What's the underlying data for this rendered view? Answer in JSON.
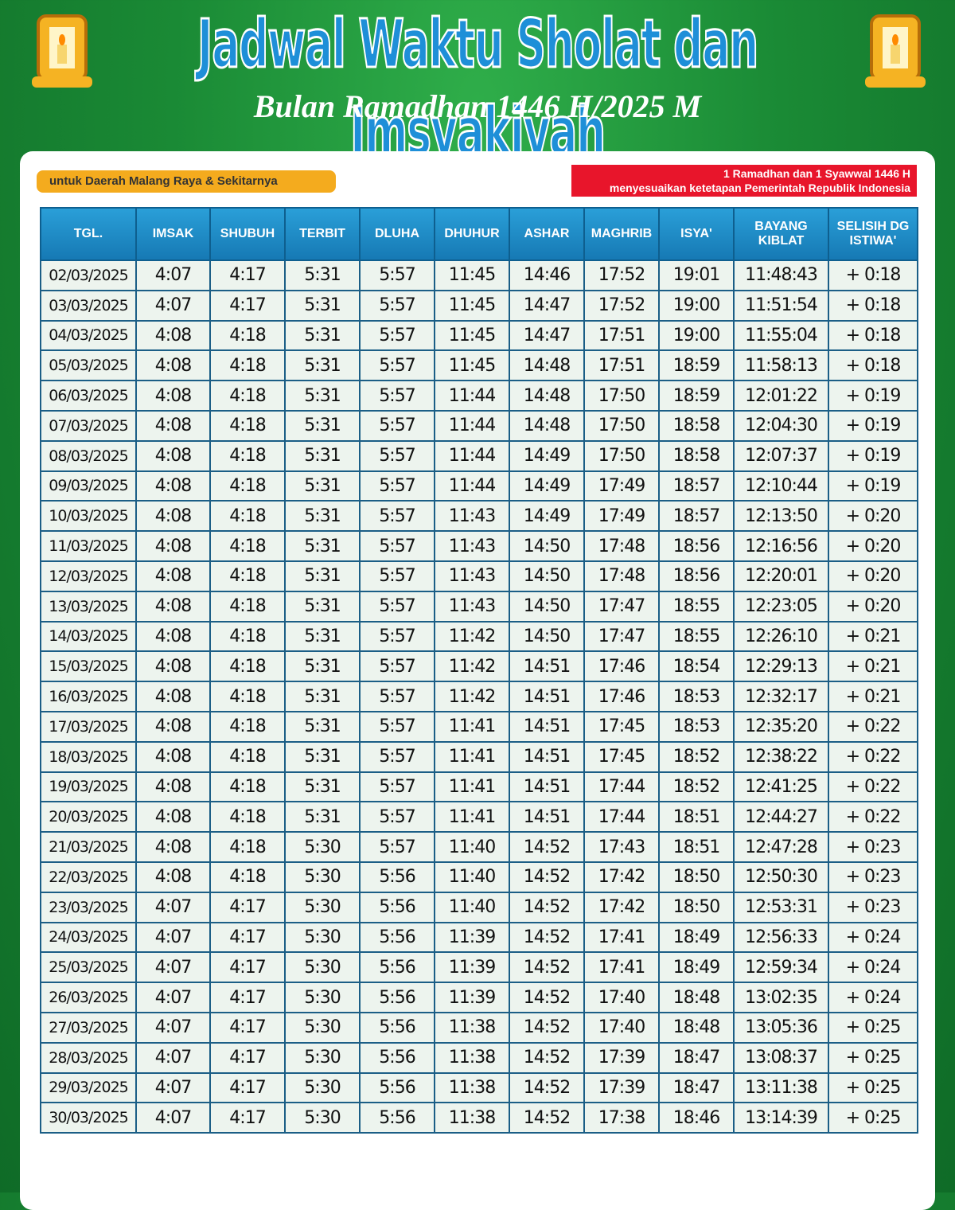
{
  "header": {
    "title": "Jadwal Waktu Sholat dan Imsyakiyah",
    "subtitle": "Bulan Ramadhan 1446 H/2025 M",
    "region": "untuk Daerah Malang Raya & Sekitarnya",
    "note": [
      "1 Ramadhan dan 1 Syawwal  1446 H",
      "menyesuaikan ketetapan Pemerintah Republik Indonesia"
    ]
  },
  "table": {
    "columns": [
      "TGL.",
      "IMSAK",
      "SHUBUH",
      "TERBIT",
      "DLUHA",
      "DHUHUR",
      "ASHAR",
      "MAGHRIB",
      "ISYA'",
      "BAYANG KIBLAT",
      "SELISIH DG ISTIWA'"
    ],
    "rows": [
      [
        "02/03/2025",
        "4:07",
        "4:17",
        "5:31",
        "5:57",
        "11:45",
        "14:46",
        "17:52",
        "19:01",
        "11:48:43",
        "+ 0:18"
      ],
      [
        "03/03/2025",
        "4:07",
        "4:17",
        "5:31",
        "5:57",
        "11:45",
        "14:47",
        "17:52",
        "19:00",
        "11:51:54",
        "+ 0:18"
      ],
      [
        "04/03/2025",
        "4:08",
        "4:18",
        "5:31",
        "5:57",
        "11:45",
        "14:47",
        "17:51",
        "19:00",
        "11:55:04",
        "+ 0:18"
      ],
      [
        "05/03/2025",
        "4:08",
        "4:18",
        "5:31",
        "5:57",
        "11:45",
        "14:48",
        "17:51",
        "18:59",
        "11:58:13",
        "+ 0:18"
      ],
      [
        "06/03/2025",
        "4:08",
        "4:18",
        "5:31",
        "5:57",
        "11:44",
        "14:48",
        "17:50",
        "18:59",
        "12:01:22",
        "+ 0:19"
      ],
      [
        "07/03/2025",
        "4:08",
        "4:18",
        "5:31",
        "5:57",
        "11:44",
        "14:48",
        "17:50",
        "18:58",
        "12:04:30",
        "+ 0:19"
      ],
      [
        "08/03/2025",
        "4:08",
        "4:18",
        "5:31",
        "5:57",
        "11:44",
        "14:49",
        "17:50",
        "18:58",
        "12:07:37",
        "+ 0:19"
      ],
      [
        "09/03/2025",
        "4:08",
        "4:18",
        "5:31",
        "5:57",
        "11:44",
        "14:49",
        "17:49",
        "18:57",
        "12:10:44",
        "+ 0:19"
      ],
      [
        "10/03/2025",
        "4:08",
        "4:18",
        "5:31",
        "5:57",
        "11:43",
        "14:49",
        "17:49",
        "18:57",
        "12:13:50",
        "+ 0:20"
      ],
      [
        "11/03/2025",
        "4:08",
        "4:18",
        "5:31",
        "5:57",
        "11:43",
        "14:50",
        "17:48",
        "18:56",
        "12:16:56",
        "+ 0:20"
      ],
      [
        "12/03/2025",
        "4:08",
        "4:18",
        "5:31",
        "5:57",
        "11:43",
        "14:50",
        "17:48",
        "18:56",
        "12:20:01",
        "+ 0:20"
      ],
      [
        "13/03/2025",
        "4:08",
        "4:18",
        "5:31",
        "5:57",
        "11:43",
        "14:50",
        "17:47",
        "18:55",
        "12:23:05",
        "+ 0:20"
      ],
      [
        "14/03/2025",
        "4:08",
        "4:18",
        "5:31",
        "5:57",
        "11:42",
        "14:50",
        "17:47",
        "18:55",
        "12:26:10",
        "+ 0:21"
      ],
      [
        "15/03/2025",
        "4:08",
        "4:18",
        "5:31",
        "5:57",
        "11:42",
        "14:51",
        "17:46",
        "18:54",
        "12:29:13",
        "+ 0:21"
      ],
      [
        "16/03/2025",
        "4:08",
        "4:18",
        "5:31",
        "5:57",
        "11:42",
        "14:51",
        "17:46",
        "18:53",
        "12:32:17",
        "+ 0:21"
      ],
      [
        "17/03/2025",
        "4:08",
        "4:18",
        "5:31",
        "5:57",
        "11:41",
        "14:51",
        "17:45",
        "18:53",
        "12:35:20",
        "+ 0:22"
      ],
      [
        "18/03/2025",
        "4:08",
        "4:18",
        "5:31",
        "5:57",
        "11:41",
        "14:51",
        "17:45",
        "18:52",
        "12:38:22",
        "+ 0:22"
      ],
      [
        "19/03/2025",
        "4:08",
        "4:18",
        "5:31",
        "5:57",
        "11:41",
        "14:51",
        "17:44",
        "18:52",
        "12:41:25",
        "+ 0:22"
      ],
      [
        "20/03/2025",
        "4:08",
        "4:18",
        "5:31",
        "5:57",
        "11:41",
        "14:51",
        "17:44",
        "18:51",
        "12:44:27",
        "+ 0:22"
      ],
      [
        "21/03/2025",
        "4:08",
        "4:18",
        "5:30",
        "5:57",
        "11:40",
        "14:52",
        "17:43",
        "18:51",
        "12:47:28",
        "+ 0:23"
      ],
      [
        "22/03/2025",
        "4:08",
        "4:18",
        "5:30",
        "5:56",
        "11:40",
        "14:52",
        "17:42",
        "18:50",
        "12:50:30",
        "+ 0:23"
      ],
      [
        "23/03/2025",
        "4:07",
        "4:17",
        "5:30",
        "5:56",
        "11:40",
        "14:52",
        "17:42",
        "18:50",
        "12:53:31",
        "+ 0:23"
      ],
      [
        "24/03/2025",
        "4:07",
        "4:17",
        "5:30",
        "5:56",
        "11:39",
        "14:52",
        "17:41",
        "18:49",
        "12:56:33",
        "+ 0:24"
      ],
      [
        "25/03/2025",
        "4:07",
        "4:17",
        "5:30",
        "5:56",
        "11:39",
        "14:52",
        "17:41",
        "18:49",
        "12:59:34",
        "+ 0:24"
      ],
      [
        "26/03/2025",
        "4:07",
        "4:17",
        "5:30",
        "5:56",
        "11:39",
        "14:52",
        "17:40",
        "18:48",
        "13:02:35",
        "+ 0:24"
      ],
      [
        "27/03/2025",
        "4:07",
        "4:17",
        "5:30",
        "5:56",
        "11:38",
        "14:52",
        "17:40",
        "18:48",
        "13:05:36",
        "+ 0:25"
      ],
      [
        "28/03/2025",
        "4:07",
        "4:17",
        "5:30",
        "5:56",
        "11:38",
        "14:52",
        "17:39",
        "18:47",
        "13:08:37",
        "+ 0:25"
      ],
      [
        "29/03/2025",
        "4:07",
        "4:17",
        "5:30",
        "5:56",
        "11:38",
        "14:52",
        "17:39",
        "18:47",
        "13:11:38",
        "+ 0:25"
      ],
      [
        "30/03/2025",
        "4:07",
        "4:17",
        "5:30",
        "5:56",
        "11:38",
        "14:52",
        "17:38",
        "18:46",
        "13:14:39",
        "+ 0:25"
      ]
    ]
  }
}
